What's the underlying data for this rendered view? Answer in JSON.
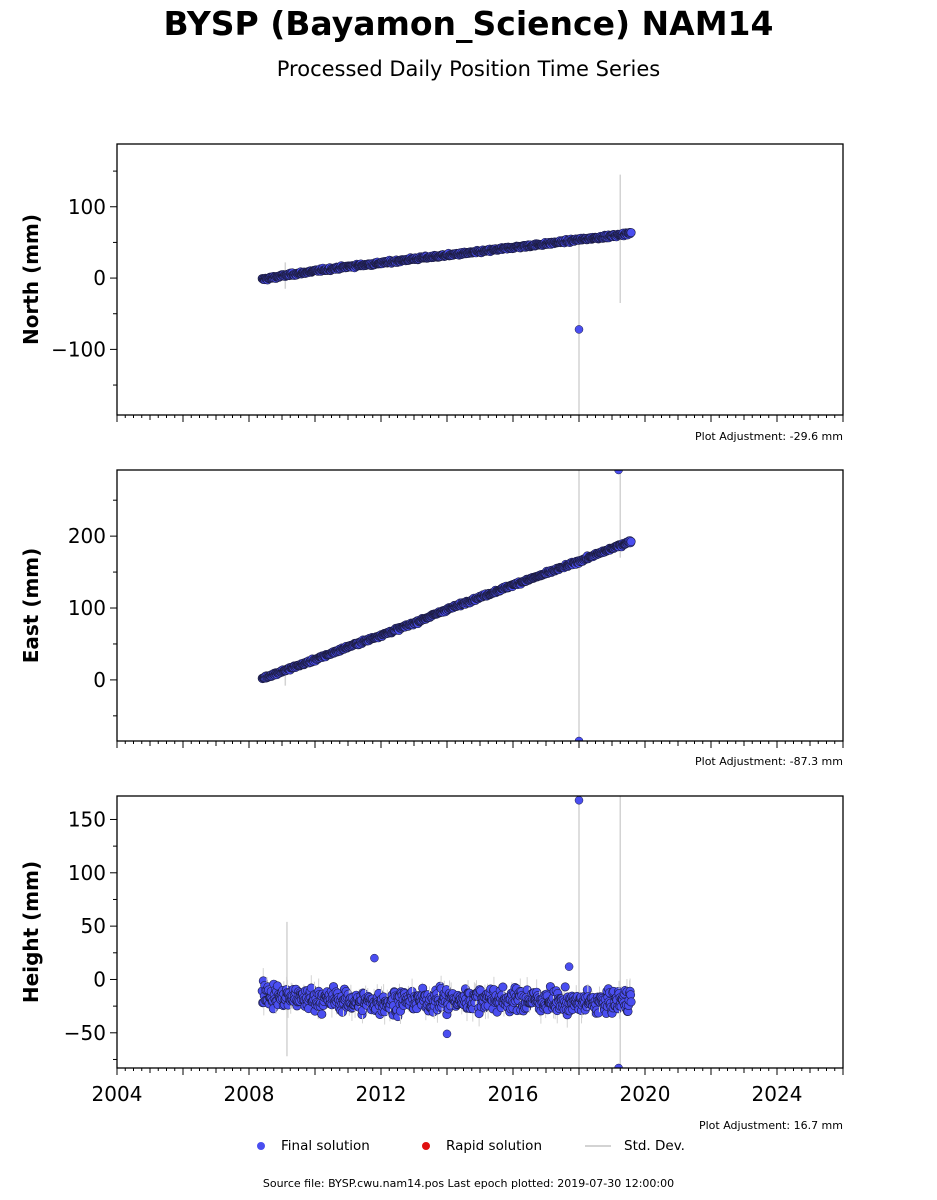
{
  "title": "BYSP (Bayamon_Science) NAM14",
  "subtitle": "Processed Daily Position Time Series",
  "legend": {
    "final": "Final solution",
    "rapid": "Rapid solution",
    "stddev": "Std. Dev."
  },
  "footer": "Source file: BYSP.cwu.nam14.pos  Last epoch plotted: 2019-07-30 12:00:00",
  "colors": {
    "final": "#4a4ef0",
    "final_edge": "#1c1c40",
    "rapid": "#e01010",
    "stddev": "#d3d3d3"
  },
  "chart_data": [
    {
      "type": "scatter",
      "ylabel": "North (mm)",
      "adjustment": "Plot Adjustment: -29.6 mm",
      "xlim": [
        2004,
        2026
      ],
      "ylim": [
        -192,
        188
      ],
      "yticks": [
        -100,
        0,
        100
      ],
      "ytick_labels": [
        "−100",
        "0",
        "100"
      ],
      "series_final": {
        "x": [
          2008.4,
          2009.0,
          2010.0,
          2011.0,
          2012.0,
          2013.0,
          2014.0,
          2015.0,
          2016.0,
          2017.0,
          2018.0,
          2019.0,
          2019.58
        ],
        "y": [
          -2,
          3,
          10,
          16,
          21,
          27,
          32,
          37,
          43,
          48,
          54,
          59,
          63
        ]
      },
      "outliers": [
        {
          "x": 2018.0,
          "y": -72
        }
      ],
      "stddev_bars": [
        {
          "x": 2018.0,
          "low": -192,
          "high": 55
        },
        {
          "x": 2019.25,
          "low": -35,
          "high": 145
        },
        {
          "x": 2009.1,
          "low": -15,
          "high": 22
        }
      ]
    },
    {
      "type": "scatter",
      "ylabel": "East (mm)",
      "adjustment": "Plot Adjustment: -87.3 mm",
      "xlim": [
        2004,
        2026
      ],
      "ylim": [
        -85,
        292
      ],
      "yticks": [
        0,
        100,
        200
      ],
      "ytick_labels": [
        "0",
        "100",
        "200"
      ],
      "series_final": {
        "x": [
          2008.4,
          2009.0,
          2010.0,
          2011.0,
          2012.0,
          2013.0,
          2014.0,
          2015.0,
          2016.0,
          2017.0,
          2018.0,
          2019.0,
          2019.58
        ],
        "y": [
          2,
          12,
          28,
          46,
          62,
          79,
          98,
          115,
          132,
          148,
          165,
          183,
          193
        ]
      },
      "outliers": [
        {
          "x": 2018.0,
          "y": -85
        },
        {
          "x": 2019.2,
          "y": 292
        }
      ],
      "stddev_bars": [
        {
          "x": 2018.0,
          "low": -85,
          "high": 292
        },
        {
          "x": 2019.25,
          "low": 170,
          "high": 292
        },
        {
          "x": 2009.1,
          "low": -8,
          "high": 16
        }
      ]
    },
    {
      "type": "scatter",
      "ylabel": "Height (mm)",
      "adjustment": "Plot Adjustment: 16.7 mm",
      "xlim": [
        2004,
        2026
      ],
      "xticks": [
        2004,
        2008,
        2012,
        2016,
        2020,
        2024
      ],
      "xtick_labels": [
        "2004",
        "2008",
        "2012",
        "2016",
        "2020",
        "2024"
      ],
      "ylim": [
        -83,
        172
      ],
      "yticks": [
        -50,
        0,
        50,
        100,
        150
      ],
      "ytick_labels": [
        "−50",
        "0",
        "50",
        "100",
        "150"
      ],
      "series_final": {
        "x": [
          2008.4,
          2009.0,
          2010.0,
          2011.0,
          2012.0,
          2013.0,
          2014.0,
          2015.0,
          2016.0,
          2017.0,
          2018.0,
          2019.0,
          2019.58
        ],
        "y": [
          -12,
          -17,
          -18,
          -20,
          -22,
          -19,
          -20,
          -18,
          -19,
          -20,
          -22,
          -21,
          -18
        ]
      },
      "outliers": [
        {
          "x": 2018.0,
          "y": 168
        },
        {
          "x": 2019.2,
          "y": -83
        },
        {
          "x": 2011.8,
          "y": 20
        },
        {
          "x": 2014.0,
          "y": -51
        },
        {
          "x": 2017.7,
          "y": 12
        }
      ],
      "stddev_bars": [
        {
          "x": 2018.0,
          "low": -83,
          "high": 172
        },
        {
          "x": 2019.25,
          "low": -83,
          "high": 172
        },
        {
          "x": 2009.15,
          "low": -72,
          "high": 54
        }
      ]
    }
  ]
}
